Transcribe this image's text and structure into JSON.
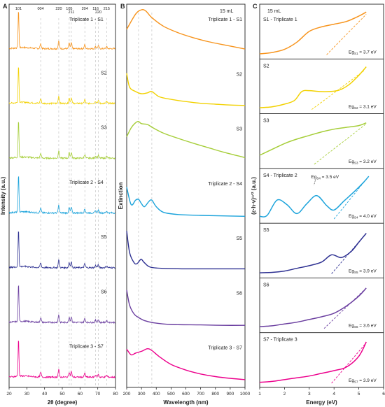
{
  "chart_data": [
    {
      "panel_label": "A",
      "type": "line",
      "xlabel": "2θ (degree)",
      "ylabel": "Intensity (a.u.)",
      "xlim": [
        20,
        80
      ],
      "xticks": [
        20,
        30,
        40,
        50,
        60,
        70,
        80
      ],
      "peak_positions": [
        25.3,
        37.8,
        48.0,
        53.9,
        55.1,
        62.7,
        68.8,
        70.3,
        75.0
      ],
      "peak_labels": [
        {
          "hkl": "101",
          "x": 25.3
        },
        {
          "hkl": "004",
          "x": 37.8
        },
        {
          "hkl": "220",
          "x": 48.0
        },
        {
          "hkl": "105",
          "x": 53.9
        },
        {
          "hkl": "211",
          "x": 55.1
        },
        {
          "hkl": "204",
          "x": 62.7
        },
        {
          "hkl": "116",
          "x": 68.8
        },
        {
          "hkl": "220",
          "x": 70.3
        },
        {
          "hkl": "215",
          "x": 75.0
        }
      ],
      "series": [
        {
          "name": "Triplicate 1 - S1",
          "color": "#F7941D"
        },
        {
          "name": "S2",
          "color": "#F2D100"
        },
        {
          "name": "S3",
          "color": "#A6CE39"
        },
        {
          "name": "Triplicate 2 - S4",
          "color": "#1BA3DB"
        },
        {
          "name": "S5",
          "color": "#2E3192"
        },
        {
          "name": "S6",
          "color": "#6B3FA0"
        },
        {
          "name": "Triplicate 3 - S7",
          "color": "#EC008C"
        }
      ]
    },
    {
      "panel_label": "B",
      "type": "line",
      "xlabel": "Wavelength (nm)",
      "ylabel": "Extinction",
      "annotation": "15 mL",
      "xlim": [
        200,
        1000
      ],
      "xticks": [
        200,
        300,
        400,
        500,
        600,
        700,
        800,
        900,
        1000
      ],
      "series": [
        {
          "name": "Triplicate 1 - S1",
          "color": "#F7941D",
          "x": [
            200,
            260,
            300,
            330,
            370,
            450,
            550,
            650,
            750,
            850,
            1000
          ],
          "y": [
            0.55,
            0.9,
            1.0,
            0.97,
            0.82,
            0.62,
            0.47,
            0.36,
            0.27,
            0.2,
            0.1
          ]
        },
        {
          "name": "S2",
          "color": "#F2D100",
          "x": [
            200,
            220,
            260,
            300,
            340,
            370,
            420,
            500,
            600,
            700,
            800,
            900,
            1000
          ],
          "y": [
            0.8,
            0.48,
            0.38,
            0.33,
            0.35,
            0.38,
            0.26,
            0.2,
            0.15,
            0.11,
            0.09,
            0.07,
            0.06
          ]
        },
        {
          "name": "S3",
          "color": "#A6CE39",
          "x": [
            200,
            230,
            260,
            280,
            300,
            340,
            380,
            450,
            550,
            650,
            750,
            850,
            1000
          ],
          "y": [
            0.6,
            0.8,
            0.92,
            0.95,
            0.9,
            0.88,
            0.8,
            0.68,
            0.56,
            0.45,
            0.35,
            0.25,
            0.12
          ]
        },
        {
          "name": "Triplicate 2 - S4",
          "color": "#1BA3DB",
          "x": [
            200,
            230,
            260,
            280,
            300,
            320,
            350,
            370,
            400,
            450,
            550,
            700,
            850,
            1000
          ],
          "y": [
            0.7,
            0.3,
            0.4,
            0.42,
            0.32,
            0.25,
            0.37,
            0.4,
            0.25,
            0.12,
            0.07,
            0.05,
            0.04,
            0.03
          ]
        },
        {
          "name": "S5",
          "color": "#2E3192",
          "x": [
            200,
            220,
            250,
            270,
            290,
            300,
            320,
            360,
            450,
            600,
            800,
            1000
          ],
          "y": [
            0.95,
            0.45,
            0.22,
            0.2,
            0.28,
            0.3,
            0.22,
            0.12,
            0.09,
            0.08,
            0.08,
            0.08
          ]
        },
        {
          "name": "S6",
          "color": "#6B3FA0",
          "x": [
            200,
            220,
            250,
            280,
            320,
            380,
            500,
            700,
            850,
            1000
          ],
          "y": [
            0.85,
            0.5,
            0.3,
            0.22,
            0.15,
            0.1,
            0.06,
            0.05,
            0.04,
            0.04
          ]
        },
        {
          "name": "Triplicate 3 - S7",
          "color": "#EC008C",
          "x": [
            200,
            230,
            260,
            300,
            340,
            370,
            420,
            500,
            600,
            700,
            800,
            900,
            1000
          ],
          "y": [
            0.75,
            0.62,
            0.66,
            0.7,
            0.76,
            0.72,
            0.58,
            0.4,
            0.27,
            0.18,
            0.12,
            0.08,
            0.05
          ]
        }
      ]
    },
    {
      "panel_label": "C",
      "type": "line",
      "xlabel": "Energy (eV)",
      "ylabel": "(ε·h·ν)¹ᐟ² (a.u.)",
      "annotation": "15 mL",
      "xlim": [
        1,
        6
      ],
      "xticks": [
        1,
        2,
        3,
        4,
        5,
        6
      ],
      "series": [
        {
          "name": "S1 - Triplicate 1",
          "color": "#F7941D",
          "band_gap_label": "Eg",
          "band_gap_sub": "S1",
          "band_gap_value": "= 3.7 eV",
          "bandgap": 3.7,
          "fit_end": [
            5.3,
            0.9
          ],
          "x": [
            1.0,
            1.5,
            2.0,
            2.5,
            3.0,
            3.5,
            4.0,
            4.5,
            5.0,
            5.3
          ],
          "y": [
            0.02,
            0.05,
            0.12,
            0.28,
            0.52,
            0.62,
            0.68,
            0.74,
            0.86,
            0.95
          ]
        },
        {
          "name": "S2",
          "color": "#F2D100",
          "band_gap_label": "Eg",
          "band_gap_sub": "S2",
          "band_gap_value": "= 3.1 eV",
          "bandgap": 3.1,
          "fit_end": [
            5.2,
            0.86
          ],
          "x": [
            1.0,
            1.5,
            2.0,
            2.4,
            2.7,
            3.0,
            3.4,
            3.8,
            4.2,
            4.6,
            5.0,
            5.3
          ],
          "y": [
            0.04,
            0.06,
            0.12,
            0.2,
            0.4,
            0.42,
            0.4,
            0.4,
            0.43,
            0.55,
            0.76,
            0.95
          ]
        },
        {
          "name": "S3",
          "color": "#A6CE39",
          "band_gap_label": "Eg",
          "band_gap_sub": "S3",
          "band_gap_value": "= 3.2 eV",
          "bandgap": 3.2,
          "fit_end": [
            5.3,
            0.9
          ],
          "x": [
            1.0,
            1.5,
            2.0,
            2.5,
            3.0,
            3.5,
            4.0,
            4.5,
            5.0,
            5.3
          ],
          "y": [
            0.2,
            0.33,
            0.46,
            0.56,
            0.64,
            0.72,
            0.78,
            0.82,
            0.86,
            0.92
          ]
        },
        {
          "name": "S4 - Triplicate 2",
          "color": "#1BA3DB",
          "band_gap_label": "Eg",
          "band_gap_sub": "S4",
          "band_gap_value": "= 4.0 eV",
          "bandgap": 4.0,
          "fit_end": [
            5.4,
            0.95
          ],
          "x": [
            1.0,
            1.3,
            1.7,
            2.1,
            2.5,
            2.9,
            3.3,
            3.7,
            4.0,
            4.4,
            4.8,
            5.2,
            5.4
          ],
          "y": [
            0.06,
            0.08,
            0.42,
            0.32,
            0.12,
            0.34,
            0.52,
            0.3,
            0.2,
            0.4,
            0.6,
            0.82,
            0.95
          ],
          "peak_annotation": {
            "label": "Eg",
            "sub": "S4",
            "value": "= 3.5 eV",
            "x": 3.3
          }
        },
        {
          "name": "S5",
          "color": "#2E3192",
          "band_gap_label": "Eg",
          "band_gap_sub": "S5",
          "band_gap_value": "= 3.9 eV",
          "bandgap": 3.9,
          "fit_end": [
            5.3,
            0.9
          ],
          "x": [
            1.0,
            1.5,
            2.0,
            2.5,
            3.0,
            3.5,
            3.9,
            4.3,
            4.7,
            5.0,
            5.3
          ],
          "y": [
            0.02,
            0.03,
            0.06,
            0.12,
            0.18,
            0.26,
            0.42,
            0.36,
            0.5,
            0.7,
            0.9
          ]
        },
        {
          "name": "S6",
          "color": "#6B3FA0",
          "band_gap_label": "Eg",
          "band_gap_sub": "S6",
          "band_gap_value": "= 3.6 eV",
          "bandgap": 3.6,
          "fit_end": [
            5.3,
            0.9
          ],
          "x": [
            1.0,
            1.5,
            2.0,
            2.5,
            3.0,
            3.5,
            4.0,
            4.5,
            5.0,
            5.3
          ],
          "y": [
            0.04,
            0.06,
            0.1,
            0.14,
            0.2,
            0.26,
            0.34,
            0.5,
            0.72,
            0.9
          ]
        },
        {
          "name": "S7 - Triplicate 3",
          "color": "#EC008C",
          "band_gap_label": "Eg",
          "band_gap_sub": "S7",
          "band_gap_value": "= 3.9 eV",
          "bandgap": 3.9,
          "fit_end": [
            5.3,
            0.9
          ],
          "x": [
            1.0,
            1.5,
            2.0,
            2.5,
            3.0,
            3.5,
            4.0,
            4.5,
            5.0,
            5.3
          ],
          "y": [
            0.02,
            0.04,
            0.08,
            0.12,
            0.16,
            0.22,
            0.28,
            0.36,
            0.6,
            0.92
          ]
        }
      ]
    }
  ]
}
